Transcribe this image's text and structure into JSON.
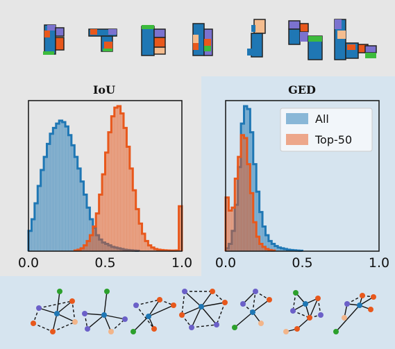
{
  "colors": {
    "all": "#1f77b4",
    "top50": "#e8581c",
    "panel_left": "#e6e6e6",
    "panel_right": "#d6e4ef",
    "node_green": "#2ca02c",
    "node_peach": "#f2b58a",
    "node_purple": "#6b60c8",
    "node_orange": "#e8581c",
    "room_purple": "#7b72cf",
    "room_peach": "#f5bd8f",
    "room_green": "#3dbb3d"
  },
  "chart_data": [
    {
      "type": "histogram",
      "title": "IoU",
      "xlim": [
        0,
        1
      ],
      "xticks": [
        "0.0",
        "0.5",
        "1.0"
      ],
      "grid": false,
      "series": [
        {
          "name": "All",
          "x": [
            0.0,
            0.02,
            0.04,
            0.06,
            0.08,
            0.1,
            0.12,
            0.14,
            0.16,
            0.18,
            0.2,
            0.22,
            0.24,
            0.26,
            0.28,
            0.3,
            0.32,
            0.34,
            0.36,
            0.38,
            0.4,
            0.42,
            0.44,
            0.46,
            0.48,
            0.5,
            0.52,
            0.54,
            0.56,
            0.58,
            0.6,
            0.62,
            0.64,
            0.66,
            0.68,
            0.7
          ],
          "values": [
            0.14,
            0.22,
            0.33,
            0.45,
            0.56,
            0.65,
            0.74,
            0.81,
            0.85,
            0.88,
            0.9,
            0.89,
            0.86,
            0.8,
            0.73,
            0.65,
            0.57,
            0.48,
            0.39,
            0.3,
            0.22,
            0.16,
            0.11,
            0.08,
            0.06,
            0.05,
            0.04,
            0.03,
            0.025,
            0.02,
            0.015,
            0.01,
            0.008,
            0.006,
            0.004,
            0.003
          ]
        },
        {
          "name": "Top-50",
          "x": [
            0.3,
            0.32,
            0.34,
            0.36,
            0.38,
            0.4,
            0.42,
            0.44,
            0.46,
            0.48,
            0.5,
            0.52,
            0.54,
            0.56,
            0.58,
            0.6,
            0.62,
            0.64,
            0.66,
            0.68,
            0.7,
            0.72,
            0.74,
            0.76,
            0.78,
            0.8,
            0.82,
            0.84,
            0.86,
            0.88,
            0.9,
            0.92,
            0.94,
            0.96,
            0.98
          ],
          "values": [
            0.005,
            0.01,
            0.02,
            0.04,
            0.07,
            0.11,
            0.17,
            0.26,
            0.39,
            0.53,
            0.68,
            0.82,
            0.93,
            0.99,
            1.0,
            0.95,
            0.85,
            0.72,
            0.57,
            0.42,
            0.29,
            0.19,
            0.12,
            0.07,
            0.04,
            0.025,
            0.015,
            0.01,
            0.008,
            0.006,
            0.005,
            0.004,
            0.004,
            0.005,
            0.31
          ]
        }
      ]
    },
    {
      "type": "histogram",
      "title": "GED",
      "xlim": [
        0,
        1
      ],
      "xticks": [
        "0.0",
        "0.5",
        "1.0"
      ],
      "grid": false,
      "legend": {
        "position": "top-right",
        "entries": [
          "All",
          "Top-50"
        ]
      },
      "series": [
        {
          "name": "All",
          "x": [
            0.0,
            0.02,
            0.04,
            0.06,
            0.08,
            0.1,
            0.12,
            0.14,
            0.16,
            0.18,
            0.2,
            0.22,
            0.24,
            0.26,
            0.28,
            0.3,
            0.32,
            0.34,
            0.36,
            0.38,
            0.4,
            0.42,
            0.44,
            0.46,
            0.48
          ],
          "values": [
            0.02,
            0.05,
            0.14,
            0.32,
            0.58,
            0.88,
            1.0,
            0.98,
            0.82,
            0.6,
            0.41,
            0.27,
            0.17,
            0.11,
            0.07,
            0.05,
            0.035,
            0.025,
            0.02,
            0.015,
            0.01,
            0.008,
            0.006,
            0.004,
            0.003
          ]
        },
        {
          "name": "Top-50",
          "x": [
            0.0,
            0.02,
            0.04,
            0.06,
            0.08,
            0.1,
            0.12,
            0.14,
            0.16,
            0.18,
            0.2,
            0.22,
            0.24,
            0.26,
            0.28,
            0.3
          ],
          "values": [
            0.37,
            0.28,
            0.3,
            0.5,
            0.65,
            0.8,
            0.78,
            0.6,
            0.4,
            0.2,
            0.1,
            0.05,
            0.03,
            0.015,
            0.008,
            0.004
          ]
        }
      ]
    }
  ]
}
